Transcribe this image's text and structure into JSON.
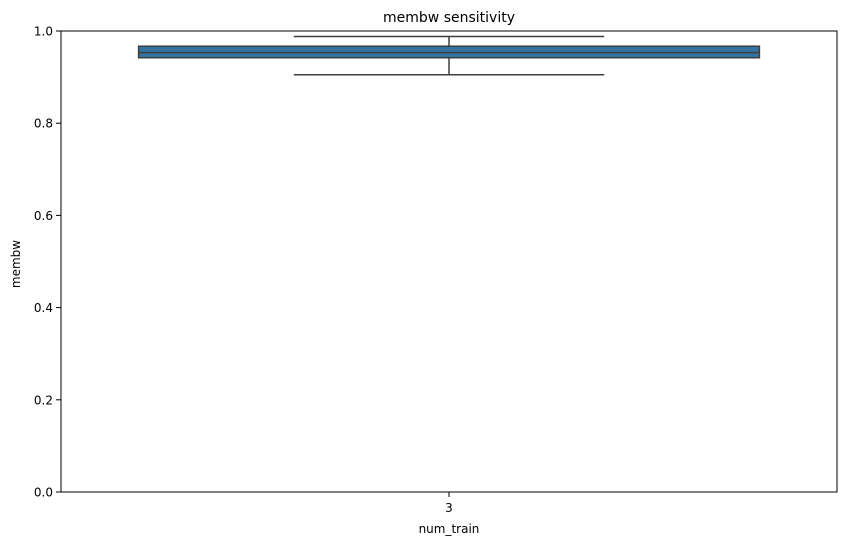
{
  "chart_data": {
    "type": "box",
    "title": "membw sensitivity",
    "xlabel": "num_train",
    "ylabel": "membw",
    "categories": [
      "3"
    ],
    "ylim": [
      0,
      1.0
    ],
    "yticks": [
      "0.0",
      "0.2",
      "0.4",
      "0.6",
      "0.8",
      "1.0"
    ],
    "boxes": [
      {
        "category": "3",
        "whisker_low": 0.905,
        "q1": 0.942,
        "median": 0.953,
        "q3": 0.967,
        "whisker_high": 0.988
      }
    ],
    "grid": false,
    "colors": {
      "box_fill": "#3274a1",
      "box_edge": "#3f3f3f",
      "axis": "#000000"
    }
  }
}
